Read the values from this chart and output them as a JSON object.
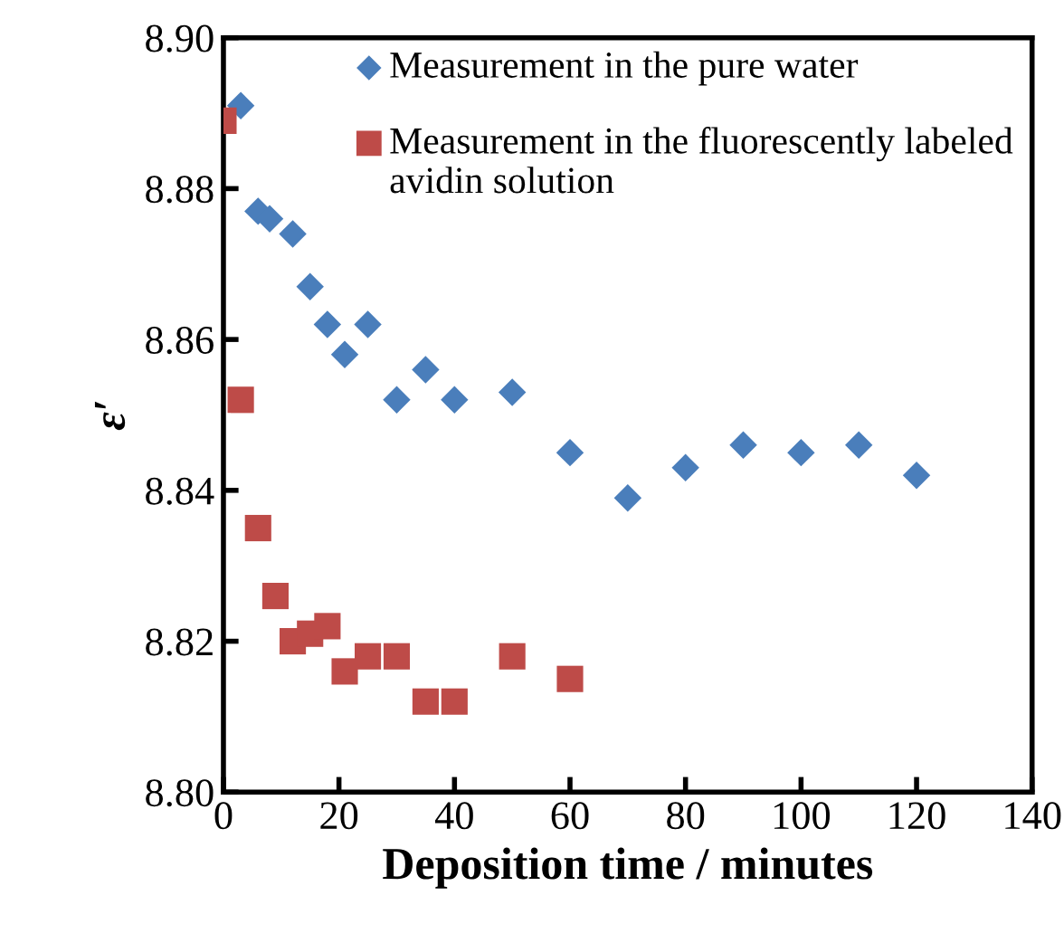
{
  "chart_data": {
    "type": "scatter",
    "xlabel": "Deposition time / minutes",
    "ylabel": "ε′",
    "xlim": [
      0,
      140
    ],
    "xticks": [
      0,
      20,
      40,
      60,
      80,
      100,
      120,
      140
    ],
    "ylim": [
      8.8,
      8.9
    ],
    "yticks": [
      {
        "value": 8.8,
        "label": "8.80"
      },
      {
        "value": 8.82,
        "label": "8.82"
      },
      {
        "value": 8.84,
        "label": "8.84"
      },
      {
        "value": 8.86,
        "label": "8.86"
      },
      {
        "value": 8.88,
        "label": "8.88"
      },
      {
        "value": 8.9,
        "label": "8.90"
      }
    ],
    "grid": false,
    "legend": "top right",
    "series": [
      {
        "name": "Measurement in the pure water",
        "color": "#4a7ebb",
        "marker": "diamond",
        "x": [
          3,
          6,
          8,
          12,
          15,
          18,
          21,
          25,
          30,
          35,
          40,
          50,
          60,
          70,
          80,
          90,
          100,
          110,
          120
        ],
        "values": [
          8.891,
          8.877,
          8.876,
          8.874,
          8.867,
          8.862,
          8.858,
          8.862,
          8.852,
          8.856,
          8.852,
          8.853,
          8.845,
          8.839,
          8.843,
          8.846,
          8.845,
          8.846,
          8.842
        ]
      },
      {
        "name": "Measurement in the fluorescently labeled avidin solution",
        "color": "#be4b48",
        "marker": "square",
        "x": [
          0,
          3,
          6,
          9,
          12,
          15,
          18,
          21,
          25,
          30,
          35,
          40,
          50,
          60
        ],
        "values": [
          8.889,
          8.852,
          8.835,
          8.826,
          8.82,
          8.821,
          8.822,
          8.816,
          8.818,
          8.818,
          8.812,
          8.812,
          8.818,
          8.815
        ]
      }
    ]
  }
}
